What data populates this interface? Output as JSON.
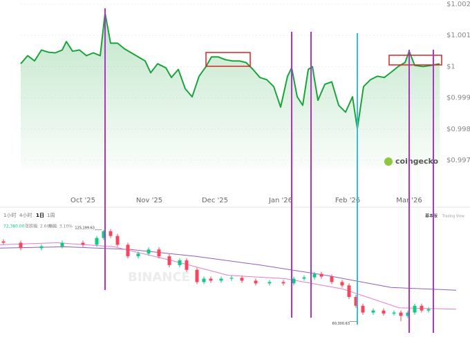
{
  "chart_data": [
    {
      "type": "line",
      "color": "#1aa33a",
      "ylim": [
        0.9968,
        1.002
      ],
      "yticks": [
        {
          "value": 1.002,
          "label": "$1.002"
        },
        {
          "value": 1.001,
          "label": "$1.001"
        },
        {
          "value": 1,
          "label": "$1"
        },
        {
          "value": 0.999,
          "label": "$0.999"
        },
        {
          "value": 0.998,
          "label": "$0.998"
        },
        {
          "value": 0.997,
          "label": "$0.997"
        }
      ],
      "x_labels": [
        "Oct '25",
        "Nov '25",
        "Dec '25",
        "Jan '26",
        "Feb '26",
        "Mar '26"
      ],
      "watermark": "coingecko",
      "values": [
        1.00009,
        1.00035,
        1.00018,
        1.00053,
        1.00046,
        1.00044,
        1.00053,
        1.0008,
        1.00049,
        1.00053,
        1.00035,
        1.00044,
        1.00035,
        1.00172,
        1.00075,
        1.00075,
        1.00057,
        1.00044,
        1.00031,
        1.00018,
        0.9998,
        1.00009,
        0.99996,
        0.99965,
        0.99991,
        0.99929,
        0.99903,
        0.99969,
        1,
        1.00031,
        1.00031,
        1.00022,
        1.00018,
        1.00018,
        1.00013,
        0.99991,
        0.99965,
        0.99958,
        0.99936,
        0.9987,
        0.99969,
        0.99996,
        0.99903,
        0.99876,
        0.99991,
        1,
        0.99892,
        0.99943,
        0.99951,
        0.99876,
        0.99854,
        0.99903,
        0.99801,
        0.99936,
        0.99958,
        0.99969,
        0.99965,
        0.99982,
        1,
        1.00013,
        1.00049,
        1.00004,
        1,
        1.00004,
        1.00009
      ]
    },
    {
      "type": "candlestick",
      "up_color": "#0ecb81",
      "down_color": "#f6465d",
      "ylim": [
        58000,
        131500
      ],
      "toolbar": [
        "1小时",
        "4小时",
        "1日",
        "1周"
      ],
      "info": [
        "72,380.00",
        "涨跌幅: 2.60%",
        "振幅: 3.10%"
      ],
      "mode_labels": [
        "基本版",
        "Trading View"
      ],
      "watermark": "BINANCE",
      "open": [
        117000,
        116070,
        112220,
        113500,
        116070,
        114620,
        119430,
        124240,
        120870,
        114620,
        106450,
        108370,
        111260,
        106450,
        100200,
        103560,
        96830,
        88180,
        90580,
        89140,
        90580,
        91200,
        89140,
        87220,
        88180,
        87220,
        90580,
        91500,
        93950,
        92020,
        88180,
        85770,
        77600,
        71350,
        66540,
        67980,
        65800,
        66540,
        64140,
        66540,
        71350,
        67980
      ],
      "high": [
        118500,
        117600,
        115000,
        117600,
        117600,
        120900,
        125199.63,
        125700,
        122400,
        116100,
        109900,
        112800,
        112800,
        107900,
        105100,
        105100,
        98300,
        92100,
        92100,
        92100,
        92700,
        92700,
        90600,
        89700,
        89700,
        92100,
        93000,
        95500,
        95500,
        93500,
        89700,
        87300,
        79100,
        72900,
        69500,
        69500,
        68000,
        68000,
        68000,
        72900,
        72900,
        70400
      ],
      "low": [
        114600,
        110700,
        110700,
        112000,
        113100,
        113100,
        117900,
        119400,
        113100,
        104900,
        104900,
        106900,
        104900,
        98700,
        98700,
        95300,
        86700,
        86700,
        87600,
        87600,
        89100,
        87600,
        85700,
        85700,
        85700,
        85700,
        89100,
        90000,
        90500,
        86700,
        84300,
        76100,
        69900,
        65000,
        65000,
        64300,
        64300,
        60300.63,
        62600,
        65000,
        66500,
        66500
      ],
      "close": [
        116070,
        112220,
        113500,
        116070,
        114620,
        119430,
        124240,
        120870,
        114620,
        106450,
        108370,
        111260,
        106450,
        100200,
        103560,
        96830,
        88180,
        90580,
        89140,
        90580,
        91200,
        89140,
        87220,
        88180,
        87220,
        90580,
        91500,
        93950,
        92020,
        88180,
        85770,
        77600,
        71350,
        66540,
        67980,
        65800,
        66540,
        64140,
        66540,
        71350,
        67980,
        68940
      ],
      "annotations": [
        {
          "text": "125,199.63",
          "value": 125199.63
        },
        {
          "text": "60,300.63",
          "value": 60300.63
        }
      ],
      "series": [
        {
          "color": "#8e5cc0",
          "values": [
            112220,
            113180,
            111260,
            106450,
            100200,
            92990,
            84330,
            82410
          ]
        },
        {
          "color": "#e879c6",
          "values": [
            114620,
            116070,
            113180,
            103560,
            92990,
            90580,
            83370,
            69910,
            68940
          ]
        }
      ]
    }
  ]
}
